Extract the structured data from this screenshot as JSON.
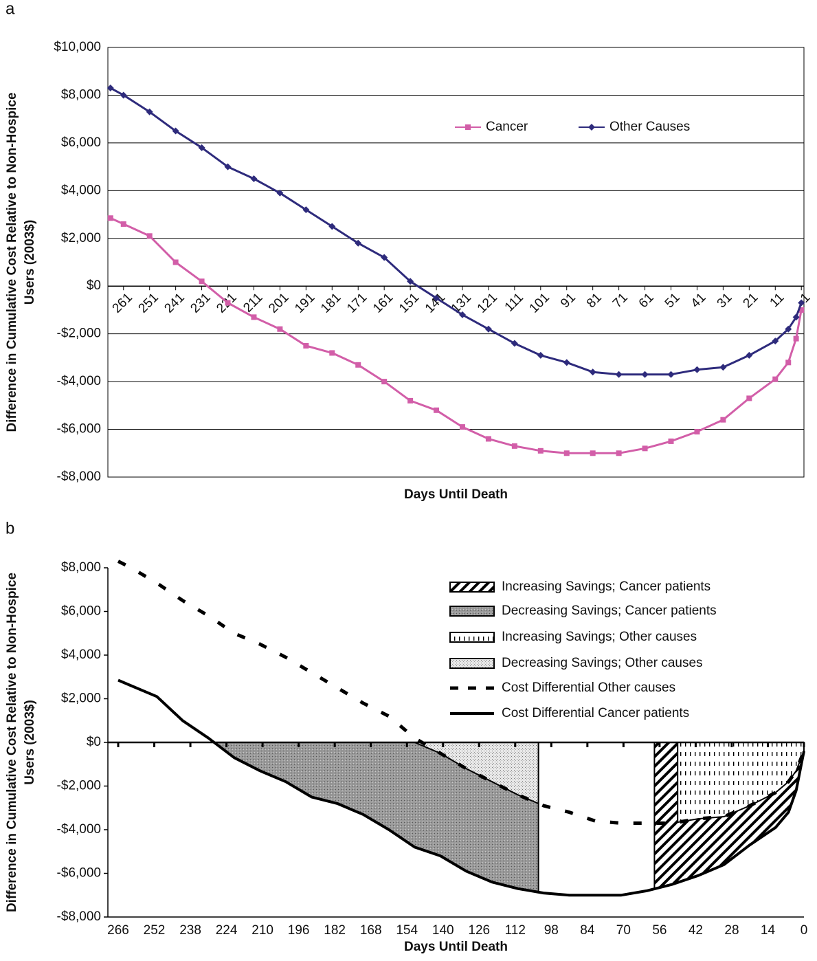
{
  "chart_data": [
    {
      "type": "line",
      "panel": "a",
      "xlabel": "Days Until Death",
      "ylabel_lines": [
        "Difference in Cumulative Cost Relative to Non-Hospice",
        "Users (2003$)"
      ],
      "xlim": [
        267,
        0
      ],
      "xticks": [
        261,
        251,
        241,
        231,
        221,
        211,
        201,
        191,
        181,
        171,
        161,
        151,
        141,
        131,
        121,
        111,
        101,
        91,
        81,
        71,
        61,
        51,
        41,
        31,
        21,
        11,
        1
      ],
      "ylim": [
        -8000,
        10000
      ],
      "yticks": [
        {
          "value": -8000,
          "label": "-$8,000"
        },
        {
          "value": -6000,
          "label": "-$6,000"
        },
        {
          "value": -4000,
          "label": "-$4,000"
        },
        {
          "value": -2000,
          "label": "-$2,000"
        },
        {
          "value": 0,
          "label": "$0"
        },
        {
          "value": 2000,
          "label": "$2,000"
        },
        {
          "value": 4000,
          "label": "$4,000"
        },
        {
          "value": 6000,
          "label": "$6,000"
        },
        {
          "value": 8000,
          "label": "$8,000"
        },
        {
          "value": 10000,
          "label": "$10,000"
        }
      ],
      "grid": true,
      "x": [
        266,
        261,
        251,
        241,
        231,
        221,
        211,
        201,
        191,
        181,
        171,
        161,
        151,
        141,
        131,
        121,
        111,
        101,
        91,
        81,
        71,
        61,
        51,
        41,
        31,
        21,
        11,
        6,
        3,
        1
      ],
      "series": [
        {
          "name": "Cancer",
          "color": "#d25ea8",
          "marker": "square",
          "values": [
            2850,
            2600,
            2100,
            1000,
            200,
            -700,
            -1300,
            -1800,
            -2500,
            -2800,
            -3300,
            -4000,
            -4800,
            -5200,
            -5900,
            -6400,
            -6700,
            -6900,
            -7000,
            -7000,
            -7000,
            -6800,
            -6500,
            -6100,
            -5600,
            -4700,
            -3900,
            -3200,
            -2200,
            -1000
          ]
        },
        {
          "name": "Other Causes",
          "color": "#2e2b7c",
          "marker": "diamond",
          "values": [
            8300,
            8000,
            7300,
            6500,
            5800,
            5000,
            4500,
            3900,
            3200,
            2500,
            1800,
            1200,
            200,
            -500,
            -1200,
            -1800,
            -2400,
            -2900,
            -3200,
            -3600,
            -3700,
            -3700,
            -3700,
            -3500,
            -3400,
            -2900,
            -2300,
            -1800,
            -1300,
            -700
          ]
        }
      ]
    },
    {
      "type": "area",
      "panel": "b",
      "xlabel": "Days Until Death",
      "ylabel_lines": [
        "Difference in Cumulative Cost Relative to Non-Hospice",
        "Users (2003$)"
      ],
      "xlim": [
        270,
        0
      ],
      "xticks": [
        266,
        252,
        238,
        224,
        210,
        196,
        182,
        168,
        154,
        140,
        126,
        112,
        98,
        84,
        70,
        56,
        42,
        28,
        14,
        0
      ],
      "ylim": [
        -8000,
        8000
      ],
      "yticks": [
        {
          "value": -8000,
          "label": "-$8,000"
        },
        {
          "value": -6000,
          "label": "-$6,000"
        },
        {
          "value": -4000,
          "label": "-$4,000"
        },
        {
          "value": -2000,
          "label": "-$2,000"
        },
        {
          "value": 0,
          "label": "$0"
        },
        {
          "value": 2000,
          "label": "$2,000"
        },
        {
          "value": 4000,
          "label": "$4,000"
        },
        {
          "value": 6000,
          "label": "$6,000"
        },
        {
          "value": 8000,
          "label": "$8,000"
        }
      ],
      "grid": false,
      "x": [
        266,
        261,
        251,
        241,
        231,
        221,
        211,
        201,
        191,
        181,
        171,
        161,
        151,
        141,
        131,
        121,
        111,
        101,
        91,
        81,
        71,
        61,
        51,
        41,
        31,
        21,
        11,
        6,
        3,
        1,
        0
      ],
      "areas": [
        {
          "name": "Increasing Savings; Cancer patients",
          "pattern": "hatch",
          "x": [
            58,
            0
          ],
          "series": 1
        },
        {
          "name": "Decreasing Savings; Cancer patients",
          "pattern": "crosshatch",
          "x": [
            228,
            103
          ],
          "series": 1
        },
        {
          "name": "Increasing Savings; Other causes",
          "pattern": "vdash",
          "x": [
            49,
            0
          ],
          "series": 0
        },
        {
          "name": "Decreasing Savings; Other causes",
          "pattern": "dots",
          "x": [
            152,
            103
          ],
          "series": 0
        }
      ],
      "series": [
        {
          "name": "Cost Differential Other causes",
          "color": "#000000",
          "dash": true,
          "values": [
            8300,
            8000,
            7300,
            6500,
            5800,
            5000,
            4500,
            3900,
            3200,
            2500,
            1800,
            1200,
            200,
            -500,
            -1200,
            -1800,
            -2400,
            -2900,
            -3200,
            -3600,
            -3700,
            -3700,
            -3700,
            -3500,
            -3400,
            -2900,
            -2300,
            -1800,
            -1300,
            -700,
            -400
          ]
        },
        {
          "name": "Cost Differential Cancer patients",
          "color": "#000000",
          "dash": false,
          "values": [
            2850,
            2600,
            2100,
            1000,
            200,
            -700,
            -1300,
            -1800,
            -2500,
            -2800,
            -3300,
            -4000,
            -4800,
            -5200,
            -5900,
            -6400,
            -6700,
            -6900,
            -7000,
            -7000,
            -7000,
            -6800,
            -6500,
            -6100,
            -5600,
            -4700,
            -3900,
            -3200,
            -2200,
            -1000,
            -400
          ]
        }
      ]
    }
  ]
}
